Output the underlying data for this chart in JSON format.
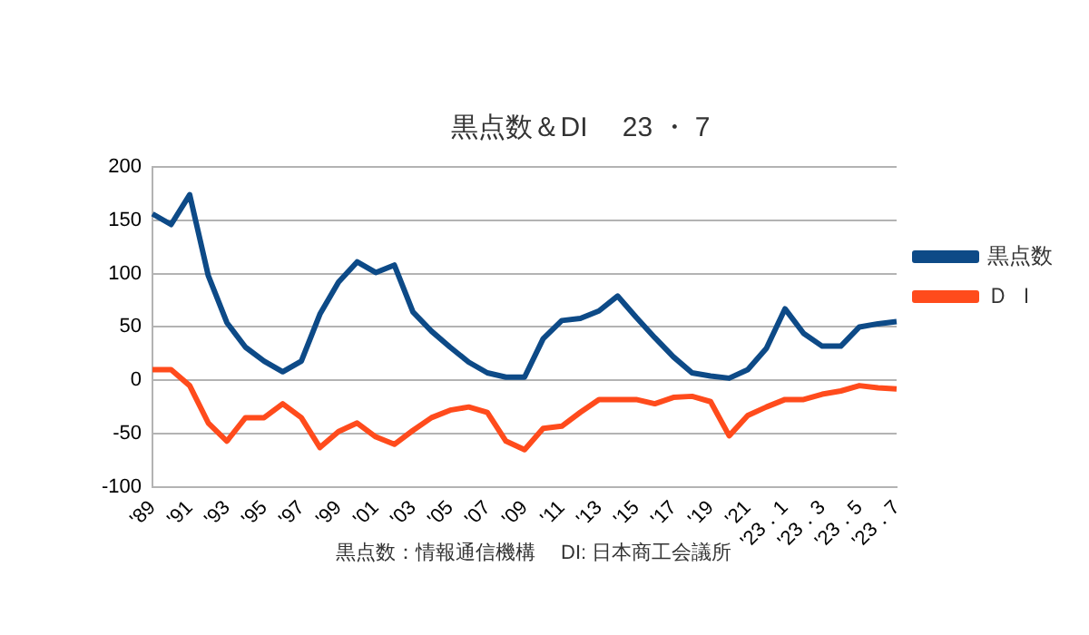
{
  "chart_data": {
    "type": "line",
    "title": "黒点数＆DI　 23 ・ 7",
    "categories": [
      "'89",
      null,
      "'91",
      null,
      "'93",
      null,
      "'95",
      null,
      "'97",
      null,
      "'99",
      null,
      "'01",
      null,
      "'03",
      null,
      "'05",
      null,
      "'07",
      null,
      "'09",
      null,
      "'11",
      null,
      "'13",
      null,
      "'15",
      null,
      "'17",
      null,
      "'19",
      null,
      "'21",
      null,
      "'23．1",
      null,
      "'23．3",
      null,
      "'23．5",
      null,
      "'23．7"
    ],
    "series": [
      {
        "name": "黒点数",
        "color": "#0d4a87",
        "values": [
          156,
          146,
          174,
          98,
          54,
          31,
          18,
          8,
          18,
          62,
          92,
          111,
          101,
          108,
          64,
          46,
          31,
          17,
          7,
          3,
          3,
          39,
          56,
          58,
          65,
          79,
          59,
          40,
          22,
          7,
          4,
          2,
          10,
          30,
          67,
          44,
          32,
          32,
          50,
          53,
          55
        ]
      },
      {
        "name": "Ｄ Ｉ",
        "color": "#ff4b1c",
        "values": [
          10,
          10,
          -5,
          -40,
          -57,
          -35,
          -35,
          -22,
          -35,
          -63,
          -48,
          -40,
          -53,
          -60,
          -47,
          -35,
          -28,
          -25,
          -30,
          -57,
          -65,
          -45,
          -43,
          -30,
          -18,
          -18,
          -18,
          -22,
          -16,
          -15,
          -20,
          -52,
          -33,
          -25,
          -18,
          -18,
          -13,
          -10,
          -5,
          -7,
          -8
        ]
      }
    ],
    "ylim": [
      -100,
      200
    ],
    "yticks": [
      -100,
      -50,
      0,
      50,
      100,
      150,
      200
    ],
    "grid": "y",
    "legend": "right",
    "marker": "none",
    "line_style": "solid",
    "annotations": [
      "黒点数：情報通信機構　 DI: 日本商工会議所"
    ]
  }
}
